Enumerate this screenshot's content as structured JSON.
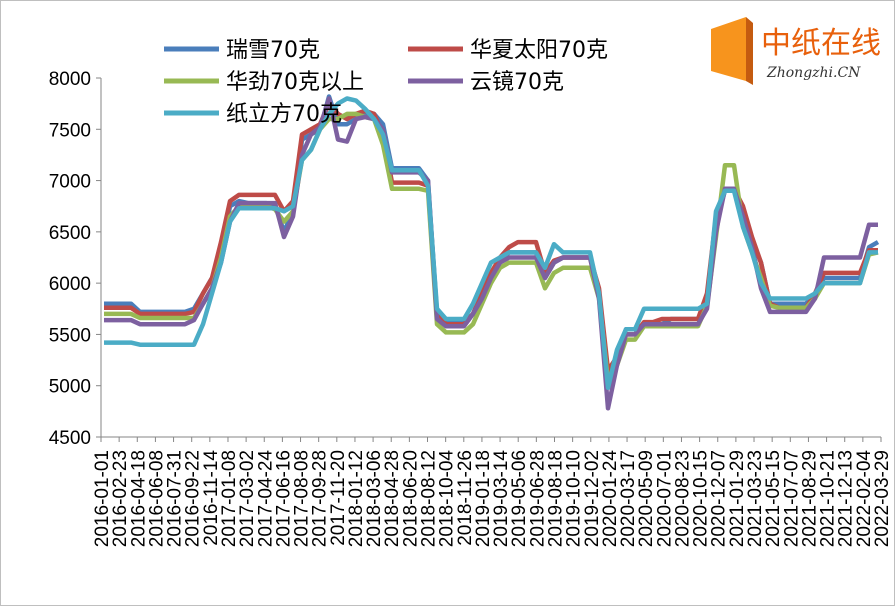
{
  "chart_data": {
    "type": "line",
    "ylim": [
      4500,
      8000
    ],
    "yticks": [
      4500,
      5000,
      5500,
      6000,
      6500,
      7000,
      7500,
      8000
    ],
    "x_tick_labels": [
      "2016-01-01",
      "2016-02-23",
      "2016-04-18",
      "2016-06-08",
      "2016-07-31",
      "2016-09-22",
      "2016-11-14",
      "2017-01-08",
      "2017-03-02",
      "2017-04-24",
      "2017-06-16",
      "2017-08-08",
      "2017-09-28",
      "2017-11-20",
      "2018-01-12",
      "2018-03-06",
      "2018-04-28",
      "2018-06-20",
      "2018-08-12",
      "2018-10-04",
      "2018-11-26",
      "2019-01-18",
      "2019-03-14",
      "2019-05-06",
      "2019-06-28",
      "2019-08-18",
      "2019-10-10",
      "2019-12-02",
      "2020-01-24",
      "2020-03-17",
      "2020-05-09",
      "2020-07-01",
      "2020-08-23",
      "2020-10-15",
      "2020-12-07",
      "2021-01-29",
      "2021-03-23",
      "2021-05-15",
      "2021-07-07",
      "2021-08-29",
      "2021-10-21",
      "2021-12-13",
      "2022-02-04",
      "2022-03-29"
    ],
    "series": [
      {
        "name": "瑞雪70克",
        "color": "#4a7ebb",
        "values": [
          5800,
          5800,
          5800,
          5800,
          5720,
          5720,
          5720,
          5720,
          5720,
          5720,
          5750,
          5900,
          6050,
          6300,
          6750,
          6800,
          6780,
          6780,
          6780,
          6760,
          6500,
          6700,
          7400,
          7450,
          7500,
          7820,
          7550,
          7550,
          7600,
          7650,
          7650,
          7550,
          7120,
          7120,
          7120,
          7120,
          7000,
          5700,
          5620,
          5620,
          5620,
          5700,
          5900,
          6100,
          6200,
          6300,
          6300,
          6300,
          6300,
          6050,
          6200,
          6250,
          6250,
          6250,
          6250,
          5900,
          5100,
          5300,
          5550,
          5550,
          5600,
          5600,
          5600,
          5650,
          5650,
          5650,
          5650,
          5800,
          6600,
          6900,
          6900,
          6700,
          6400,
          6200,
          5800,
          5800,
          5800,
          5800,
          5800,
          5900,
          6050,
          6050,
          6050,
          6050,
          6050,
          6350,
          6400
        ]
      },
      {
        "name": "华夏太阳70克",
        "color": "#be4b48",
        "values": [
          5760,
          5760,
          5760,
          5760,
          5700,
          5700,
          5700,
          5700,
          5700,
          5700,
          5720,
          5900,
          6050,
          6400,
          6800,
          6860,
          6860,
          6860,
          6860,
          6860,
          6700,
          6800,
          7450,
          7500,
          7550,
          7750,
          7650,
          7600,
          7650,
          7680,
          7650,
          7450,
          6980,
          6980,
          6980,
          6980,
          6950,
          5700,
          5600,
          5600,
          5600,
          5700,
          5900,
          6100,
          6250,
          6350,
          6400,
          6400,
          6400,
          6100,
          6220,
          6250,
          6250,
          6250,
          6250,
          5950,
          5150,
          5280,
          5500,
          5500,
          5620,
          5620,
          5650,
          5650,
          5650,
          5650,
          5650,
          5900,
          6650,
          6920,
          6920,
          6750,
          6450,
          6200,
          5800,
          5760,
          5760,
          5760,
          5760,
          5900,
          6100,
          6100,
          6100,
          6100,
          6100,
          6320,
          6320
        ]
      },
      {
        "name": "华劲70克以上",
        "color": "#98b954",
        "values": [
          5700,
          5700,
          5700,
          5700,
          5660,
          5660,
          5660,
          5660,
          5660,
          5660,
          5660,
          5800,
          5950,
          6250,
          6650,
          6750,
          6750,
          6750,
          6750,
          6720,
          6600,
          6700,
          7200,
          7300,
          7500,
          7600,
          7600,
          7650,
          7650,
          7620,
          7600,
          7350,
          6920,
          6920,
          6920,
          6920,
          6900,
          5600,
          5520,
          5520,
          5520,
          5600,
          5800,
          6000,
          6150,
          6200,
          6200,
          6200,
          6200,
          5950,
          6100,
          6150,
          6150,
          6150,
          6150,
          5850,
          5050,
          5200,
          5450,
          5450,
          5580,
          5580,
          5580,
          5580,
          5580,
          5580,
          5580,
          5780,
          6450,
          7150,
          7150,
          6550,
          6300,
          6050,
          5780,
          5760,
          5760,
          5760,
          5760,
          5850,
          6000,
          6000,
          6000,
          6000,
          6000,
          6280,
          6300
        ]
      },
      {
        "name": "云镜70克",
        "color": "#7d60a0",
        "values": [
          5640,
          5640,
          5640,
          5640,
          5600,
          5600,
          5600,
          5600,
          5600,
          5600,
          5640,
          5800,
          5950,
          6200,
          6600,
          6780,
          6780,
          6780,
          6780,
          6780,
          6450,
          6650,
          7250,
          7450,
          7520,
          7800,
          7400,
          7380,
          7600,
          7620,
          7600,
          7500,
          7080,
          7080,
          7080,
          7080,
          7000,
          5650,
          5580,
          5580,
          5580,
          5700,
          5850,
          6050,
          6200,
          6250,
          6250,
          6250,
          6250,
          6050,
          6200,
          6250,
          6250,
          6250,
          6250,
          5850,
          4780,
          5200,
          5500,
          5500,
          5600,
          5600,
          5600,
          5600,
          5600,
          5600,
          5600,
          5750,
          6500,
          6920,
          6920,
          6650,
          6350,
          5950,
          5720,
          5720,
          5720,
          5720,
          5720,
          5850,
          6250,
          6250,
          6250,
          6250,
          6250,
          6570,
          6570
        ]
      },
      {
        "name": "纸立方70克",
        "color": "#4bacc6",
        "values": [
          5420,
          5420,
          5420,
          5420,
          5400,
          5400,
          5400,
          5400,
          5400,
          5400,
          5400,
          5600,
          5900,
          6200,
          6600,
          6730,
          6730,
          6730,
          6730,
          6730,
          6700,
          6750,
          7200,
          7300,
          7500,
          7650,
          7750,
          7800,
          7780,
          7700,
          7600,
          7450,
          7100,
          7100,
          7100,
          7100,
          6950,
          5750,
          5650,
          5650,
          5650,
          5800,
          6000,
          6200,
          6250,
          6300,
          6300,
          6300,
          6300,
          6150,
          6380,
          6300,
          6300,
          6300,
          6300,
          5900,
          4980,
          5350,
          5550,
          5550,
          5750,
          5750,
          5750,
          5750,
          5750,
          5750,
          5750,
          5800,
          6700,
          6900,
          6900,
          6550,
          6300,
          6000,
          5850,
          5850,
          5850,
          5850,
          5850,
          5900,
          6000,
          6000,
          6000,
          6000,
          6000,
          6300,
          6300
        ]
      }
    ],
    "legend_position": "top-left",
    "grid": false
  },
  "logo": {
    "text_cn": "中纸在线",
    "text_en": "Zhongzhi.CN",
    "accent": "#f7941d"
  }
}
